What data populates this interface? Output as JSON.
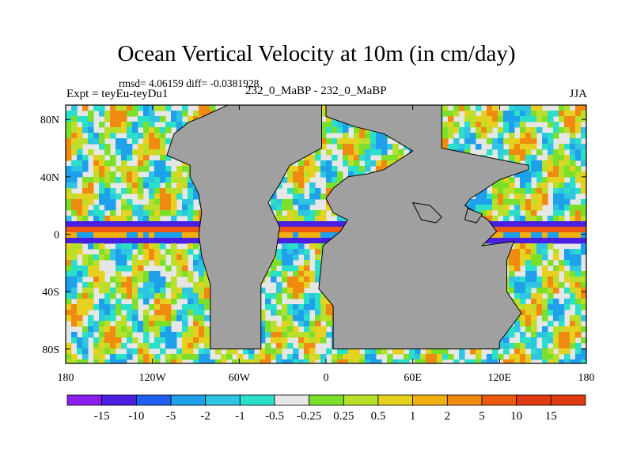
{
  "chart_data": {
    "type": "heatmap",
    "title": "Ocean Vertical Velocity at 10m (in cm/day)",
    "stats_line": "rmsd= 4.06159 diff= -0.0381928",
    "left_label": "Expt = teyEu-teyDu1",
    "center_label": "232_0_MaBP - 232_0_MaBP",
    "right_label": "JJA",
    "x_axis": {
      "ticks": [
        {
          "value": -180,
          "label": "180"
        },
        {
          "value": -120,
          "label": "120W"
        },
        {
          "value": -60,
          "label": "60W"
        },
        {
          "value": 0,
          "label": "0"
        },
        {
          "value": 60,
          "label": "60E"
        },
        {
          "value": 120,
          "label": "120E"
        },
        {
          "value": 180,
          "label": "180"
        }
      ],
      "range": [
        -180,
        180
      ]
    },
    "y_axis": {
      "ticks": [
        {
          "value": 80,
          "label": "80N"
        },
        {
          "value": 40,
          "label": "40N"
        },
        {
          "value": 0,
          "label": "0"
        },
        {
          "value": -40,
          "label": "40S"
        },
        {
          "value": -80,
          "label": "80S"
        }
      ],
      "range": [
        -90,
        90
      ]
    },
    "colorbar": {
      "labels": [
        "-15",
        "-10",
        "-5",
        "-2",
        "-1",
        "-0.5",
        "-0.25",
        "0.25",
        "0.5",
        "1",
        "2",
        "5",
        "10",
        "15"
      ],
      "colors": [
        "#8a1ff0",
        "#4a1fe0",
        "#2060f0",
        "#1ea0ea",
        "#2ec4e2",
        "#2ae0c8",
        "#e6e6e6",
        "#7ae02a",
        "#b8e02a",
        "#e6d020",
        "#f0b010",
        "#f08a10",
        "#ec5a10",
        "#e03a10"
      ]
    },
    "land_color": "#a0a0a0"
  }
}
